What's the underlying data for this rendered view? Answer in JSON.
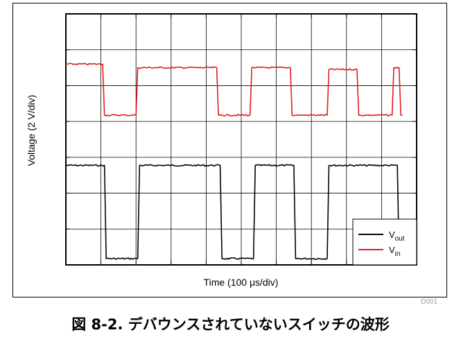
{
  "chart_data": {
    "type": "line",
    "xlabel": "Time (100 μs/div)",
    "ylabel": "Voltage (2 V/div)",
    "divisions": {
      "x": 10,
      "y": 7
    },
    "grid": true,
    "legend_position": "bottom-right",
    "series": [
      {
        "name": "V",
        "sub": "out",
        "color": "#000000",
        "x": [
          0,
          1.1,
          1.15,
          2.05,
          2.1,
          4.4,
          4.45,
          5.35,
          5.4,
          6.5,
          6.55,
          7.45,
          7.5,
          9.45,
          9.5,
          9.55
        ],
        "y": [
          5.55,
          5.55,
          0.35,
          0.35,
          5.55,
          5.55,
          0.35,
          0.35,
          5.55,
          5.55,
          0.35,
          0.35,
          5.55,
          5.55,
          0.35,
          0.35
        ]
      },
      {
        "name": "V",
        "sub": "in",
        "color": "#e41a1c",
        "x": [
          0,
          1.05,
          1.1,
          2.0,
          2.05,
          4.3,
          4.35,
          5.25,
          5.3,
          6.4,
          6.45,
          7.45,
          7.5,
          8.3,
          8.35,
          9.3,
          9.35,
          9.5,
          9.55,
          9.6
        ],
        "y": [
          11.2,
          11.2,
          8.35,
          8.35,
          11.0,
          11.0,
          8.35,
          8.35,
          11.0,
          11.0,
          8.35,
          8.35,
          10.9,
          10.9,
          8.35,
          8.35,
          11.0,
          11.0,
          8.35,
          8.35
        ]
      }
    ]
  },
  "labels": {
    "xlabel": "Time (100 μs/div)",
    "ylabel": "Voltage (2 V/div)",
    "code": "D001",
    "caption": "図 8-2. デバウンスされていないスイッチの波形"
  }
}
